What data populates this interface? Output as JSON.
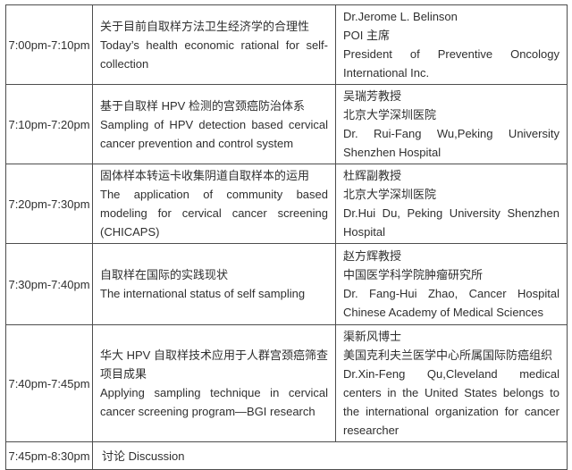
{
  "document": {
    "type": "conference-agenda-table",
    "language": "zh-CN / en"
  },
  "colors": {
    "background": "#ffffff",
    "border": "#4d4d4d",
    "text": "#2f2f2f"
  },
  "table": {
    "columns": [
      "time",
      "topic",
      "speaker"
    ],
    "rows": [
      {
        "time": "7:00pm-7:10pm",
        "topic_zh": "关于目前自取样方法卫生经济学的合理性",
        "topic_en": "Today’s health economic rational for self-collection",
        "speaker": [
          "Dr.Jerome L. Belinson",
          "POI 主席",
          "President of Preventive Oncology International Inc."
        ]
      },
      {
        "time": "7:10pm-7:20pm",
        "topic_zh": "基于自取样 HPV 检测的宫颈癌防治体系",
        "topic_en": "Sampling of HPV detection based cervical cancer prevention and control system",
        "speaker": [
          "吴瑞芳教授",
          "北京大学深圳医院",
          "Dr. Rui-Fang Wu,Peking University Shenzhen Hospital"
        ]
      },
      {
        "time": "7:20pm-7:30pm",
        "topic_zh": "固体样本转运卡收集阴道自取样本的运用",
        "topic_en": "The application of community based modeling for cervical cancer screening (CHICAPS)",
        "speaker": [
          "杜辉副教授",
          "北京大学深圳医院",
          "Dr.Hui Du, Peking University Shenzhen Hospital"
        ]
      },
      {
        "time": "7:30pm-7:40pm",
        "topic_zh": "自取样在国际的实践现状",
        "topic_en": "The international status of self sampling",
        "speaker": [
          "赵方辉教授",
          "中国医学科学院肿瘤研究所",
          "Dr. Fang-Hui Zhao, Cancer Hospital Chinese Academy of Medical Sciences"
        ]
      },
      {
        "time": "7:40pm-7:45pm",
        "topic_zh": "华大 HPV 自取样技术应用于人群宫颈癌筛查项目成果",
        "topic_en": "Applying sampling technique in cervical cancer screening program—BGI research",
        "speaker": [
          "渠新风博士",
          "美国克利夫兰医学中心所属国际防癌组织",
          "Dr.Xin-Feng Qu,Cleveland medical centers in the United States belongs to the international organization for cancer researcher"
        ]
      },
      {
        "time": "7:45pm-8:30pm",
        "discussion": "讨论 Discussion"
      }
    ]
  }
}
